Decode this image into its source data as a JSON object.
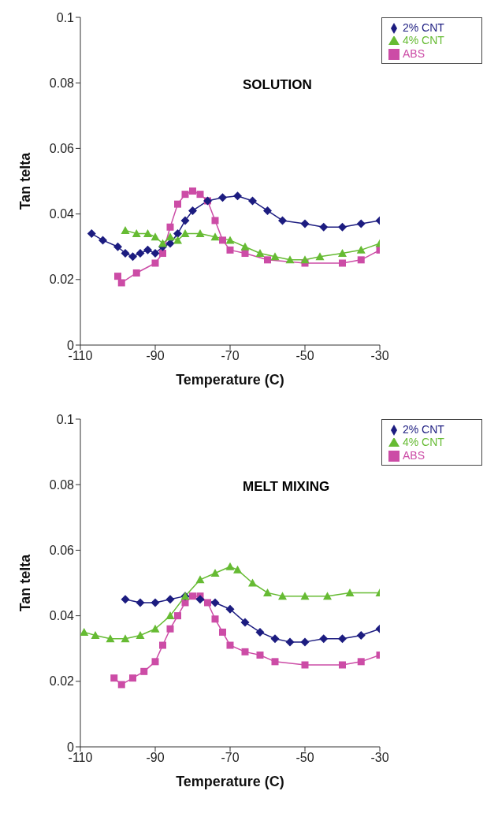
{
  "chart_data": [
    {
      "type": "line",
      "xlabel": "Temperature (C)",
      "ylabel": "Tan telta",
      "annotations": [
        "SOLUTION"
      ],
      "xlim": [
        -110,
        -30
      ],
      "xticks": [
        -110,
        -90,
        -70,
        -50,
        -30
      ],
      "ylim": [
        0,
        0.1
      ],
      "yticks": [
        0,
        0.02,
        0.04,
        0.06,
        0.08,
        0.1
      ],
      "legend": "top right",
      "grid": false,
      "series": [
        {
          "name": "ABS",
          "color": "#cc4ca6",
          "marker": "square",
          "x": [
            -100,
            -99,
            -95,
            -90,
            -88,
            -86,
            -84,
            -82,
            -80,
            -78,
            -76,
            -74,
            -72,
            -70,
            -66,
            -60,
            -50,
            -40,
            -35,
            -30
          ],
          "values": [
            0.021,
            0.019,
            0.022,
            0.025,
            0.028,
            0.036,
            0.043,
            0.046,
            0.047,
            0.046,
            0.044,
            0.038,
            0.032,
            0.029,
            0.028,
            0.026,
            0.025,
            0.025,
            0.026,
            0.029
          ]
        },
        {
          "name": "2% CNT",
          "color": "#1c1c80",
          "marker": "diamond",
          "x": [
            -107,
            -104,
            -100,
            -98,
            -96,
            -94,
            -92,
            -90,
            -88,
            -86,
            -84,
            -82,
            -80,
            -76,
            -72,
            -68,
            -64,
            -60,
            -56,
            -50,
            -45,
            -40,
            -35,
            -30
          ],
          "values": [
            0.034,
            0.032,
            0.03,
            0.028,
            0.027,
            0.028,
            0.029,
            0.028,
            0.03,
            0.031,
            0.034,
            0.038,
            0.041,
            0.044,
            0.045,
            0.0455,
            0.044,
            0.041,
            0.038,
            0.037,
            0.036,
            0.036,
            0.037,
            0.038
          ]
        },
        {
          "name": "4% CNT",
          "color": "#66bb33",
          "marker": "triangle",
          "x": [
            -98,
            -95,
            -92,
            -90,
            -88,
            -86,
            -84,
            -82,
            -78,
            -74,
            -70,
            -66,
            -62,
            -58,
            -54,
            -50,
            -46,
            -40,
            -35,
            -30
          ],
          "values": [
            0.035,
            0.034,
            0.034,
            0.033,
            0.031,
            0.033,
            0.032,
            0.034,
            0.034,
            0.033,
            0.032,
            0.03,
            0.028,
            0.027,
            0.026,
            0.026,
            0.027,
            0.028,
            0.029,
            0.031
          ]
        }
      ]
    },
    {
      "type": "line",
      "xlabel": "Temperature (C)",
      "ylabel": "Tan telta",
      "annotations": [
        "MELT MIXING"
      ],
      "xlim": [
        -110,
        -30
      ],
      "xticks": [
        -110,
        -90,
        -70,
        -50,
        -30
      ],
      "ylim": [
        0,
        0.1
      ],
      "yticks": [
        0,
        0.02,
        0.04,
        0.06,
        0.08,
        0.1
      ],
      "legend": "top right",
      "grid": false,
      "series": [
        {
          "name": "ABS",
          "color": "#cc4ca6",
          "marker": "square",
          "x": [
            -101,
            -99,
            -96,
            -93,
            -90,
            -88,
            -86,
            -84,
            -82,
            -80,
            -78,
            -76,
            -74,
            -72,
            -70,
            -66,
            -62,
            -58,
            -50,
            -40,
            -35,
            -30
          ],
          "values": [
            0.021,
            0.019,
            0.021,
            0.023,
            0.026,
            0.031,
            0.036,
            0.04,
            0.044,
            0.046,
            0.046,
            0.044,
            0.039,
            0.035,
            0.031,
            0.029,
            0.028,
            0.026,
            0.025,
            0.025,
            0.026,
            0.028
          ]
        },
        {
          "name": "2% CNT",
          "color": "#1c1c80",
          "marker": "diamond",
          "x": [
            -98,
            -94,
            -90,
            -86,
            -82,
            -78,
            -74,
            -70,
            -66,
            -62,
            -58,
            -54,
            -50,
            -45,
            -40,
            -35,
            -30
          ],
          "values": [
            0.045,
            0.044,
            0.044,
            0.045,
            0.046,
            0.045,
            0.044,
            0.042,
            0.038,
            0.035,
            0.033,
            0.032,
            0.032,
            0.033,
            0.033,
            0.034,
            0.036
          ]
        },
        {
          "name": "4% CNT",
          "color": "#66bb33",
          "marker": "triangle",
          "x": [
            -109,
            -106,
            -102,
            -98,
            -94,
            -90,
            -86,
            -82,
            -78,
            -74,
            -70,
            -68,
            -64,
            -60,
            -56,
            -50,
            -44,
            -38,
            -30
          ],
          "values": [
            0.035,
            0.034,
            0.033,
            0.033,
            0.034,
            0.036,
            0.04,
            0.046,
            0.051,
            0.053,
            0.055,
            0.054,
            0.05,
            0.047,
            0.046,
            0.046,
            0.046,
            0.047,
            0.047
          ]
        }
      ]
    }
  ]
}
